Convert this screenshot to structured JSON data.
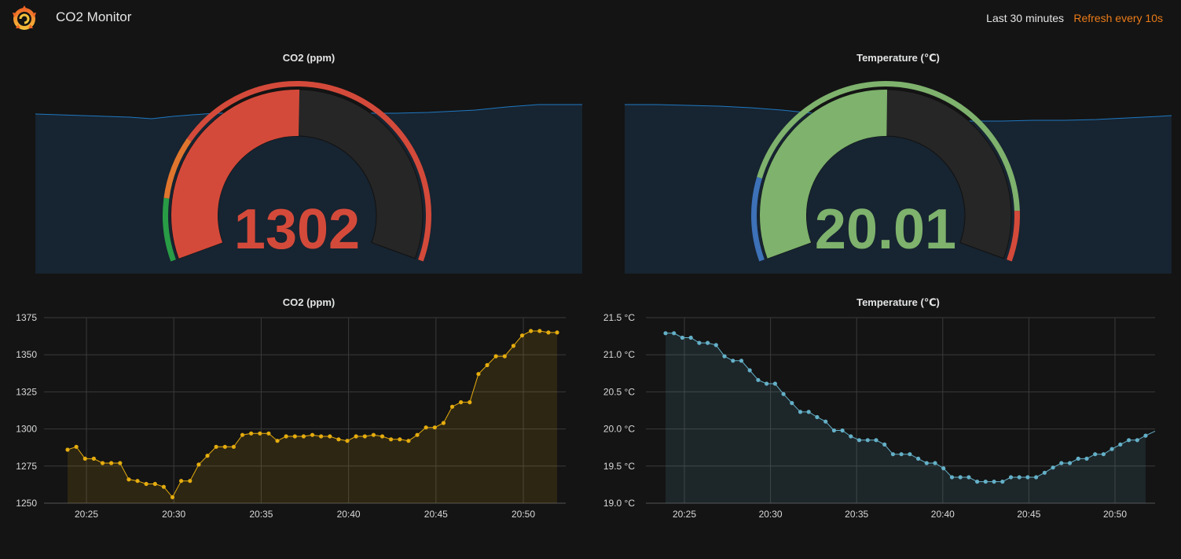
{
  "header": {
    "app_icon": "grafana-logo-icon",
    "title": "CO2 Monitor",
    "time_range": "Last 30 minutes",
    "refresh": "Refresh every 10s"
  },
  "colors": {
    "background": "#141414",
    "panel_bg": "#172431",
    "sparkline": "#1f78c1",
    "red": "#d44a3a",
    "orange": "#e0752d",
    "green": "#299c46",
    "light_green": "#7eb26d",
    "blue": "#3d71b8",
    "gauge_track": "#262626",
    "co2_series": "#e5ac0e",
    "temp_series": "#64b0c8",
    "grid": "#3a3a3a"
  },
  "panels": {
    "co2_gauge": {
      "title": "CO2 (ppm)",
      "value": "1302"
    },
    "temp_gauge": {
      "title": "Temperature (℃)",
      "value": "20.01"
    },
    "co2_graph": {
      "title": "CO2 (ppm)"
    },
    "temp_graph": {
      "title": "Temperature (℃)"
    }
  },
  "gauges": {
    "co2": {
      "min": 1100,
      "max": 1500,
      "value": 1302,
      "thresholds": [
        {
          "from": 1100,
          "to": 1150,
          "color": "#299c46"
        },
        {
          "from": 1150,
          "to": 1200,
          "color": "#e0752d"
        },
        {
          "from": 1200,
          "to": 1500,
          "color": "#d44a3a"
        }
      ],
      "fill_color": "#d44a3a"
    },
    "temp": {
      "min": 18.5,
      "max": 21.5,
      "value": 20.01,
      "thresholds": [
        {
          "from": 18.5,
          "to": 19.0,
          "color": "#3d71b8"
        },
        {
          "from": 19.0,
          "to": 21.2,
          "color": "#7eb26d"
        },
        {
          "from": 21.2,
          "to": 21.5,
          "color": "#d44a3a"
        }
      ],
      "fill_color": "#7eb26d"
    }
  },
  "chart_data": [
    {
      "type": "line",
      "title": "CO2 (ppm)",
      "xlabel": "",
      "ylabel": "",
      "x_ticks": [
        "20:25",
        "20:30",
        "20:35",
        "20:40",
        "20:45",
        "20:50"
      ],
      "y_ticks": [
        "1375",
        "1350",
        "1325",
        "1300",
        "1275",
        "1250"
      ],
      "ylim": [
        1250,
        1375
      ],
      "grid": true,
      "series": [
        {
          "color": "#e5ac0e",
          "values": [
            1286,
            1288,
            1280,
            1280,
            1277,
            1277,
            1277,
            1266,
            1265,
            1263,
            1263,
            1261,
            1254,
            1265,
            1265,
            1276,
            1282,
            1288,
            1288,
            1288,
            1296,
            1297,
            1297,
            1297,
            1292,
            1295,
            1295,
            1295,
            1296,
            1295,
            1295,
            1293,
            1292,
            1295,
            1295,
            1296,
            1295,
            1293,
            1293,
            1292,
            1296,
            1301,
            1301,
            1304,
            1315,
            1318,
            1318,
            1337,
            1343,
            1349,
            1349,
            1356,
            1363,
            1366,
            1366,
            1365,
            1365
          ]
        }
      ]
    },
    {
      "type": "line",
      "title": "Temperature (℃)",
      "xlabel": "",
      "ylabel": "",
      "x_ticks": [
        "20:25",
        "20:30",
        "20:35",
        "20:40",
        "20:45",
        "20:50"
      ],
      "y_ticks": [
        "21.5 °C",
        "21.0 °C",
        "20.5 °C",
        "20.0 °C",
        "19.5 °C",
        "19.0 °C"
      ],
      "ylim": [
        19.0,
        21.5
      ],
      "grid": true,
      "series": [
        {
          "color": "#64b0c8",
          "values": [
            21.29,
            21.29,
            21.23,
            21.23,
            21.16,
            21.16,
            21.13,
            20.98,
            20.92,
            20.92,
            20.79,
            20.66,
            20.61,
            20.61,
            20.47,
            20.35,
            20.23,
            20.23,
            20.16,
            20.1,
            19.98,
            19.98,
            19.9,
            19.85,
            19.85,
            19.85,
            19.79,
            19.66,
            19.66,
            19.66,
            19.6,
            19.54,
            19.54,
            19.47,
            19.35,
            19.35,
            19.35,
            19.29,
            19.29,
            19.29,
            19.29,
            19.35,
            19.35,
            19.35,
            19.35,
            19.41,
            19.48,
            19.54,
            19.54,
            19.6,
            19.6,
            19.66,
            19.66,
            19.73,
            19.79,
            19.85,
            19.85,
            19.91
          ]
        }
      ]
    }
  ]
}
